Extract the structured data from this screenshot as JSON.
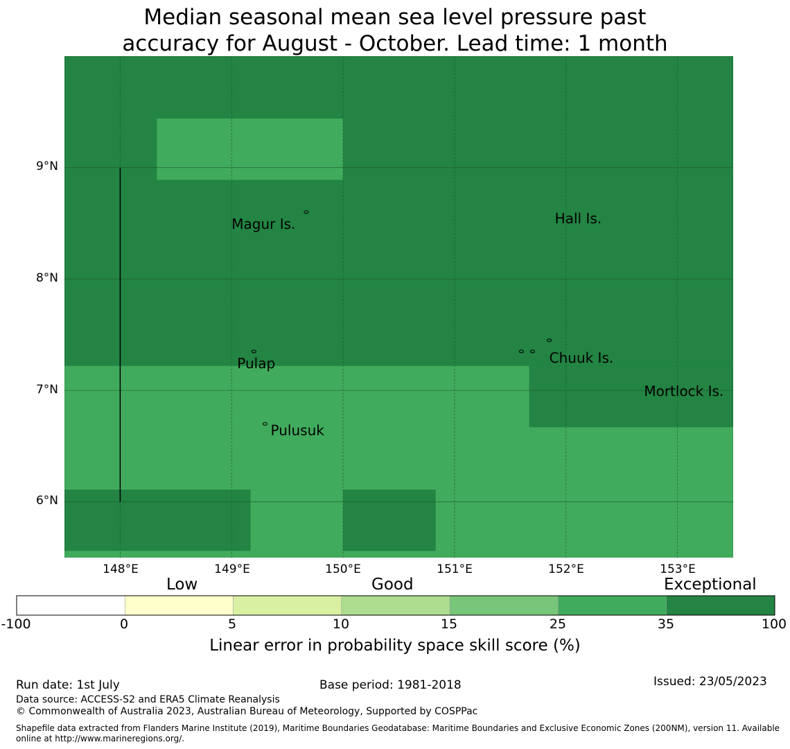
{
  "title": {
    "line1": "Median seasonal mean sea level pressure past",
    "line2": "accuracy for August - October. Lead time: 1 month"
  },
  "map": {
    "lon_range": [
      147.5,
      153.5
    ],
    "lat_range": [
      5.5,
      10.0
    ],
    "lat_ticks": [
      "9°N",
      "8°N",
      "7°N",
      "6°N"
    ],
    "lon_ticks": [
      "148°E",
      "149°E",
      "150°E",
      "151°E",
      "152°E",
      "153°E"
    ],
    "base_color": "#238443",
    "cells": [
      {
        "lon": [
          148.33,
          150.0
        ],
        "lat": [
          8.89,
          9.44
        ],
        "color": "#41ab5d"
      },
      {
        "lon": [
          147.5,
          151.67
        ],
        "lat": [
          6.11,
          7.22
        ],
        "color": "#41ab5d"
      },
      {
        "lon": [
          149.17,
          150.0
        ],
        "lat": [
          5.56,
          6.11
        ],
        "color": "#41ab5d"
      },
      {
        "lon": [
          150.83,
          153.5
        ],
        "lat": [
          5.56,
          6.67
        ],
        "color": "#41ab5d"
      },
      {
        "lon": [
          151.67,
          153.5
        ],
        "lat": [
          6.67,
          7.22
        ],
        "color": "#238443"
      },
      {
        "lon": [
          147.5,
          153.5
        ],
        "lat": [
          5.5,
          5.56
        ],
        "color": "#41ab5d"
      },
      {
        "lon": [
          150.0,
          150.83
        ],
        "lat": [
          5.56,
          6.11
        ],
        "color": "#238443"
      }
    ],
    "boundary_line": {
      "lon": 148.0,
      "lat": [
        6.0,
        9.0
      ]
    },
    "places": [
      {
        "name": "Magur Is.",
        "lon": 149.0,
        "lat": 8.45
      },
      {
        "name": "Hall Is.",
        "lon": 151.9,
        "lat": 8.5
      },
      {
        "name": "Pulap",
        "lon": 149.05,
        "lat": 7.2
      },
      {
        "name": "Chuuk Is.",
        "lon": 151.85,
        "lat": 7.25
      },
      {
        "name": "Mortlock Is.",
        "lon": 152.7,
        "lat": 6.95
      },
      {
        "name": "Pulusuk",
        "lon": 149.35,
        "lat": 6.6
      }
    ]
  },
  "colorbar": {
    "categories": [
      "Low",
      "Good",
      "Exceptional"
    ],
    "ticks": [
      "-100",
      "0",
      "5",
      "10",
      "15",
      "25",
      "35",
      "100"
    ],
    "colors": [
      "#ffffff",
      "#ffffcc",
      "#d9f0a3",
      "#addd8e",
      "#78c679",
      "#41ab5d",
      "#238443"
    ],
    "label": "Linear error in probability space skill score (%)"
  },
  "footer": {
    "run_date": "Run date: 1st July",
    "base_period": "Base period: 1981-2018",
    "issued": "Issued: 23/05/2023",
    "data_source": "Data source: ACCESS-S2 and ERA5 Climate Reanalysis",
    "copyright": "© Commonwealth of Australia 2023, Australian Bureau of Meteorology, Supported by COSPPac",
    "shapefile": "Shapefile data extracted from Flanders Marine Institute (2019), Maritime Boundaries Geodatabase: Maritime Boundaries and Exclusive Economic Zones (200NM), version 11. Available online at http://www.marineregions.org/."
  }
}
